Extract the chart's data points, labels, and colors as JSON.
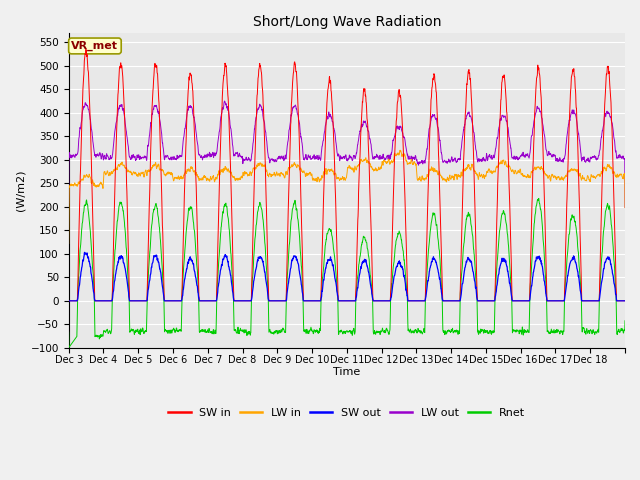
{
  "title": "Short/Long Wave Radiation",
  "xlabel": "Time",
  "ylabel": "(W/m2)",
  "ylim": [
    -100,
    570
  ],
  "yticks": [
    -100,
    -50,
    0,
    50,
    100,
    150,
    200,
    250,
    300,
    350,
    400,
    450,
    500,
    550
  ],
  "colors": {
    "SW_in": "#ff0000",
    "LW_in": "#ffa500",
    "SW_out": "#0000ff",
    "LW_out": "#9900cc",
    "Rnet": "#00cc00"
  },
  "legend_labels": [
    "SW in",
    "LW in",
    "SW out",
    "LW out",
    "Rnet"
  ],
  "station_label": "VR_met",
  "fig_bg_color": "#f0f0f0",
  "plot_bg_color": "#e8e8e8",
  "n_days": 16,
  "start_day": 3,
  "sw_peaks": [
    530,
    505,
    505,
    485,
    500,
    500,
    505,
    470,
    450,
    445,
    480,
    485,
    480,
    495,
    495,
    495
  ],
  "lw_in_base": [
    245,
    270,
    270,
    260,
    260,
    270,
    270,
    260,
    280,
    295,
    260,
    265,
    275,
    265,
    260,
    265
  ],
  "lw_out_night": [
    310,
    305,
    305,
    305,
    310,
    300,
    305,
    305,
    305,
    305,
    295,
    300,
    305,
    310,
    300,
    305
  ],
  "lw_out_peak": [
    420,
    415,
    415,
    415,
    420,
    415,
    415,
    395,
    380,
    370,
    395,
    400,
    395,
    410,
    405,
    405
  ],
  "sw_out_peak": [
    100,
    95,
    95,
    90,
    95,
    95,
    95,
    90,
    85,
    82,
    90,
    90,
    90,
    95,
    92,
    92
  ],
  "rnet_peak": [
    210,
    210,
    205,
    200,
    205,
    205,
    210,
    155,
    135,
    145,
    185,
    185,
    190,
    215,
    185,
    205
  ],
  "rnet_night": [
    -75,
    -65,
    -65,
    -63,
    -65,
    -65,
    -65,
    -65,
    -65,
    -65,
    -65,
    -65,
    -65,
    -65,
    -65,
    -65
  ]
}
